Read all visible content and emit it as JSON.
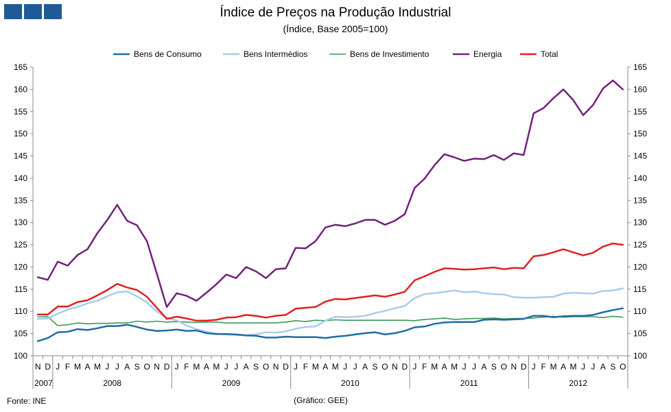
{
  "header": {
    "title": "Índice de Preços na Produção Industrial",
    "subtitle": "(Índice, Base 2005=100)"
  },
  "footer": {
    "source": "Fonte: INE",
    "credit": "(Gráfico: GEE)"
  },
  "colors": {
    "logo": "#1f5a96"
  },
  "chart_data": {
    "type": "line",
    "title": "Índice de Preços na Produção Industrial",
    "subtitle": "(Índice, Base 2005=100)",
    "ylim": [
      100,
      165
    ],
    "yticks": [
      100,
      105,
      110,
      115,
      120,
      125,
      130,
      135,
      140,
      145,
      150,
      155,
      160,
      165
    ],
    "grid": false,
    "legend": "top",
    "dual_axis": true,
    "x": [
      "2007-11",
      "2007-12",
      "2008-01",
      "2008-02",
      "2008-03",
      "2008-04",
      "2008-05",
      "2008-06",
      "2008-07",
      "2008-08",
      "2008-09",
      "2008-10",
      "2008-11",
      "2008-12",
      "2009-01",
      "2009-02",
      "2009-03",
      "2009-04",
      "2009-05",
      "2009-06",
      "2009-07",
      "2009-08",
      "2009-09",
      "2009-10",
      "2009-11",
      "2009-12",
      "2010-01",
      "2010-02",
      "2010-03",
      "2010-04",
      "2010-05",
      "2010-06",
      "2010-07",
      "2010-08",
      "2010-09",
      "2010-10",
      "2010-11",
      "2010-12",
      "2011-01",
      "2011-02",
      "2011-03",
      "2011-04",
      "2011-05",
      "2011-06",
      "2011-07",
      "2011-08",
      "2011-09",
      "2011-10",
      "2011-11",
      "2011-12",
      "2012-01",
      "2012-02",
      "2012-03",
      "2012-04",
      "2012-05",
      "2012-06",
      "2012-07",
      "2012-08",
      "2012-09",
      "2012-10"
    ],
    "month_labels": [
      "N",
      "D",
      "J",
      "F",
      "M",
      "A",
      "M",
      "J",
      "J",
      "A",
      "S",
      "O",
      "N",
      "D",
      "J",
      "F",
      "M",
      "A",
      "M",
      "J",
      "J",
      "A",
      "S",
      "O",
      "N",
      "D",
      "J",
      "F",
      "M",
      "A",
      "M",
      "J",
      "J",
      "A",
      "S",
      "O",
      "N",
      "D",
      "J",
      "F",
      "M",
      "A",
      "M",
      "J",
      "J",
      "A",
      "S",
      "O",
      "N",
      "D",
      "J",
      "F",
      "M",
      "A",
      "M",
      "J",
      "J",
      "A",
      "S",
      "O"
    ],
    "year_labels": [
      {
        "label": "2007",
        "start": 0,
        "end": 2
      },
      {
        "label": "2008",
        "start": 2,
        "end": 14
      },
      {
        "label": "2009",
        "start": 14,
        "end": 26
      },
      {
        "label": "2010",
        "start": 26,
        "end": 38
      },
      {
        "label": "2011",
        "start": 38,
        "end": 50
      },
      {
        "label": "2012",
        "start": 50,
        "end": 60
      }
    ],
    "series": [
      {
        "name": "Bens de Consumo",
        "color": "#1f6aa8",
        "width": 2.5,
        "values": [
          103.3,
          104.0,
          105.3,
          105.4,
          106.0,
          105.8,
          106.2,
          106.7,
          106.7,
          107.0,
          106.5,
          105.9,
          105.6,
          105.7,
          105.9,
          105.6,
          105.7,
          105.1,
          104.9,
          104.9,
          104.8,
          104.6,
          104.5,
          104.1,
          104.1,
          104.3,
          104.2,
          104.2,
          104.2,
          104.0,
          104.3,
          104.5,
          104.8,
          105.1,
          105.3,
          104.8,
          105.1,
          105.6,
          106.4,
          106.6,
          107.2,
          107.5,
          107.6,
          107.6,
          107.6,
          108.1,
          108.2,
          108.1,
          108.2,
          108.3,
          109.0,
          109.0,
          108.7,
          108.9,
          109.0,
          109.0,
          109.2,
          109.8,
          110.3,
          110.7
        ]
      },
      {
        "name": "Bens Intermédios",
        "color": "#a8cbef",
        "width": 2.5,
        "values": [
          108.3,
          108.4,
          109.5,
          110.4,
          111.0,
          111.8,
          112.4,
          113.4,
          114.3,
          114.5,
          113.4,
          112.0,
          110.0,
          108.5,
          108.0,
          106.8,
          106.0,
          105.4,
          105.0,
          104.8,
          104.7,
          104.6,
          104.8,
          105.3,
          105.2,
          105.5,
          106.1,
          106.5,
          106.6,
          107.9,
          108.8,
          108.7,
          108.8,
          109.0,
          109.6,
          110.1,
          110.7,
          111.2,
          113.0,
          113.9,
          114.1,
          114.4,
          114.7,
          114.3,
          114.5,
          114.1,
          113.9,
          113.8,
          113.2,
          113.1,
          113.1,
          113.2,
          113.3,
          114.0,
          114.2,
          114.1,
          114.0,
          114.6,
          114.7,
          115.2
        ]
      },
      {
        "name": "Bens de Investimento",
        "color": "#3a9a55",
        "width": 1.6,
        "values": [
          108.8,
          108.8,
          106.8,
          107.0,
          107.4,
          107.2,
          107.3,
          107.3,
          107.4,
          107.4,
          107.8,
          107.6,
          107.8,
          107.6,
          107.7,
          107.6,
          107.5,
          107.6,
          107.6,
          107.4,
          107.4,
          107.4,
          107.4,
          107.4,
          107.4,
          107.6,
          107.9,
          107.7,
          108.0,
          107.9,
          108.1,
          108.0,
          108.0,
          108.0,
          108.0,
          108.0,
          108.0,
          108.0,
          107.9,
          108.2,
          108.3,
          108.5,
          108.2,
          108.3,
          108.4,
          108.4,
          108.5,
          108.3,
          108.4,
          108.4,
          108.5,
          108.7,
          108.9,
          108.7,
          108.8,
          108.8,
          108.8,
          108.6,
          108.9,
          108.7
        ]
      },
      {
        "name": "Energia",
        "color": "#70207a",
        "width": 2.5,
        "values": [
          117.7,
          117.1,
          121.2,
          120.3,
          122.7,
          124.0,
          127.6,
          130.6,
          134.0,
          130.4,
          129.4,
          125.8,
          118.5,
          111.0,
          114.1,
          113.5,
          112.4,
          114.2,
          116.1,
          118.3,
          117.5,
          120.0,
          119.0,
          117.5,
          119.5,
          119.7,
          124.3,
          124.2,
          125.8,
          128.9,
          129.5,
          129.2,
          129.8,
          130.6,
          130.6,
          129.5,
          130.4,
          131.9,
          137.8,
          139.9,
          142.9,
          145.4,
          144.7,
          143.9,
          144.4,
          144.3,
          145.2,
          144.1,
          145.6,
          145.2,
          154.6,
          155.8,
          158.0,
          160.0,
          157.6,
          154.2,
          156.5,
          160.2,
          162.0,
          160.0
        ]
      },
      {
        "name": "Total",
        "color": "#e02020",
        "width": 2.5,
        "values": [
          109.3,
          109.3,
          111.1,
          111.1,
          112.1,
          112.5,
          113.6,
          114.8,
          116.2,
          115.4,
          114.8,
          113.3,
          110.8,
          108.3,
          108.8,
          108.4,
          107.9,
          107.9,
          108.1,
          108.6,
          108.7,
          109.2,
          109.0,
          108.6,
          109.0,
          109.2,
          110.6,
          110.8,
          111.0,
          112.2,
          112.8,
          112.7,
          113.0,
          113.3,
          113.6,
          113.3,
          113.8,
          114.4,
          117.0,
          117.9,
          118.9,
          119.7,
          119.6,
          119.4,
          119.5,
          119.7,
          119.9,
          119.5,
          119.8,
          119.7,
          122.4,
          122.7,
          123.3,
          124.0,
          123.3,
          122.6,
          123.2,
          124.6,
          125.3,
          125.0
        ]
      }
    ]
  }
}
